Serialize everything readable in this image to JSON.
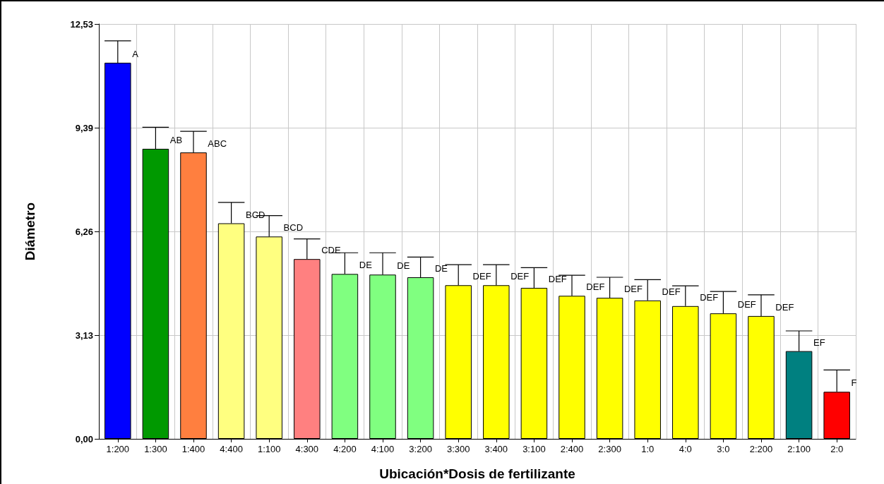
{
  "chart_data": {
    "type": "bar",
    "xlabel": "Ubicación*Dosis de fertilizante",
    "ylabel": "Diámetro",
    "categories": [
      "1:200",
      "1:300",
      "1:400",
      "4:400",
      "1:100",
      "4:300",
      "4:200",
      "4:100",
      "3:200",
      "3:300",
      "3:400",
      "3:100",
      "2:400",
      "2:300",
      "1:0",
      "4:0",
      "3:0",
      "2:200",
      "2:100",
      "2:0"
    ],
    "values": [
      11.36,
      8.76,
      8.65,
      6.51,
      6.11,
      5.43,
      4.98,
      4.96,
      4.88,
      4.64,
      4.64,
      4.56,
      4.32,
      4.26,
      4.18,
      4.01,
      3.79,
      3.71,
      2.65,
      1.42
    ],
    "colors": [
      "#0000ff",
      "#009900",
      "#ff7f3f",
      "#ffff80",
      "#ffff80",
      "#ff8080",
      "#80ff80",
      "#80ff80",
      "#80ff80",
      "#ffff00",
      "#ffff00",
      "#ffff00",
      "#ffff00",
      "#ffff00",
      "#ffff00",
      "#ffff00",
      "#ffff00",
      "#ffff00",
      "#008080",
      "#ff0000"
    ],
    "errors": [
      [
        11.36,
        12.02
      ],
      [
        8.76,
        9.41
      ],
      [
        8.65,
        9.29
      ],
      [
        6.51,
        7.14
      ],
      [
        6.11,
        6.74
      ],
      [
        5.43,
        6.04
      ],
      [
        4.98,
        5.62
      ],
      [
        4.96,
        5.62
      ],
      [
        4.88,
        5.49
      ],
      [
        4.64,
        5.26
      ],
      [
        4.64,
        5.26
      ],
      [
        4.56,
        5.17
      ],
      [
        4.32,
        4.94
      ],
      [
        4.26,
        4.88
      ],
      [
        4.18,
        4.81
      ],
      [
        4.01,
        4.62
      ],
      [
        3.79,
        4.45
      ],
      [
        3.71,
        4.35
      ],
      [
        2.65,
        3.26
      ],
      [
        1.42,
        2.08
      ]
    ],
    "ylim": [
      0,
      12.53
    ],
    "yticks": [
      {
        "value": 0,
        "label": "0,00"
      },
      {
        "value": 3.13,
        "label": "3,13"
      },
      {
        "value": 6.26,
        "label": "6,26"
      },
      {
        "value": 9.39,
        "label": "9,39"
      },
      {
        "value": 12.53,
        "label": "12,53"
      }
    ],
    "grid": true,
    "annotations": [
      {
        "text": "A",
        "x": "1:200",
        "y": 11.36
      },
      {
        "text": "AB",
        "x": "1:300",
        "y": 8.76
      },
      {
        "text": "ABC",
        "x": "1:400",
        "y": 8.65
      },
      {
        "text": "BCD",
        "x": "4:400",
        "y": 6.51
      },
      {
        "text": "BCD",
        "x": "1:100",
        "y": 6.11
      },
      {
        "text": "CDE",
        "x": "4:300",
        "y": 5.43
      },
      {
        "text": "DE",
        "x": "4:200",
        "y": 4.98
      },
      {
        "text": "DE",
        "x": "4:100",
        "y": 4.96
      },
      {
        "text": "DE",
        "x": "3:200",
        "y": 4.88
      },
      {
        "text": "DEF",
        "x": "3:300",
        "y": 4.64
      },
      {
        "text": "DEF",
        "x": "3:400",
        "y": 4.64
      },
      {
        "text": "DEF",
        "x": "3:100",
        "y": 4.56
      },
      {
        "text": "DEF",
        "x": "2:400",
        "y": 4.32
      },
      {
        "text": "DEF",
        "x": "2:300",
        "y": 4.26
      },
      {
        "text": "DEF",
        "x": "1:0",
        "y": 4.18
      },
      {
        "text": "DEF",
        "x": "4:0",
        "y": 4.01
      },
      {
        "text": "DEF",
        "x": "3:0",
        "y": 3.79
      },
      {
        "text": "DEF",
        "x": "2:200",
        "y": 3.71
      },
      {
        "text": "EF",
        "x": "2:100",
        "y": 2.65
      },
      {
        "text": "F",
        "x": "2:0",
        "y": 1.42
      }
    ]
  }
}
